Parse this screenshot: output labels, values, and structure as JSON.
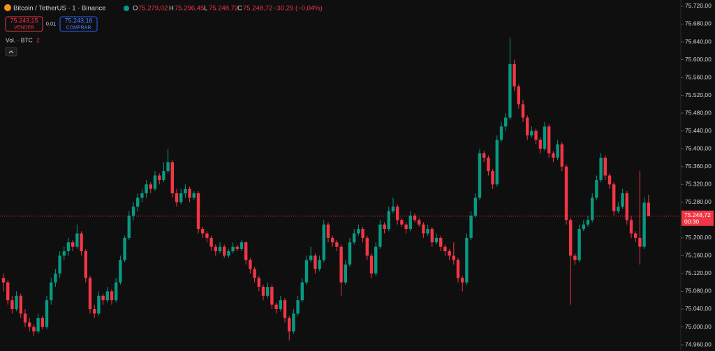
{
  "chart_data": {
    "type": "candlestick",
    "header": {
      "symbol": "Bitcoin / TetherUS · 1 · Binance",
      "o_label": "O",
      "open": "75.279,02",
      "h_label": "H",
      "high": "75.296,45",
      "l_label": "L",
      "low": "75.248,72",
      "c_label": "C",
      "close": "75.248,72",
      "change": "−30,29 (−0,04%)",
      "sell_price": "75.243,15",
      "sell_label": "VENDER",
      "spread": "0,01",
      "buy_price": "75.243,16",
      "buy_label": "COMPRAR",
      "volume_label": "Vol. · BTC",
      "volume_count": "2"
    },
    "last_price": 75248.72,
    "last_price_label": "75.248,72",
    "countdown": "00:30",
    "up_color": "#089981",
    "down_color": "#f23645",
    "ylim": [
      74946,
      75734
    ],
    "yticks": [
      {
        "value": 74960,
        "label": "74.960,00"
      },
      {
        "value": 75000,
        "label": "75.000,00"
      },
      {
        "value": 75040,
        "label": "75.040,00"
      },
      {
        "value": 75080,
        "label": "75.080,00"
      },
      {
        "value": 75120,
        "label": "75.120,00"
      },
      {
        "value": 75160,
        "label": "75.160,00"
      },
      {
        "value": 75200,
        "label": "75.200,00"
      },
      {
        "value": 75240,
        "label": "75.240,00"
      },
      {
        "value": 75280,
        "label": "75.280,00"
      },
      {
        "value": 75320,
        "label": "75.320,00"
      },
      {
        "value": 75360,
        "label": "75.360,00"
      },
      {
        "value": 75400,
        "label": "75.400,00"
      },
      {
        "value": 75440,
        "label": "75.440,00"
      },
      {
        "value": 75480,
        "label": "75.480,00"
      },
      {
        "value": 75520,
        "label": "75.520,00"
      },
      {
        "value": 75560,
        "label": "75.560,00"
      },
      {
        "value": 75600,
        "label": "75.600,00"
      },
      {
        "value": 75640,
        "label": "75.640,00"
      },
      {
        "value": 75680,
        "label": "75.680,00"
      },
      {
        "value": 75720,
        "label": "75.720,00"
      }
    ],
    "ohlc": [
      [
        75110,
        75120,
        75080,
        75100
      ],
      [
        75100,
        75105,
        75050,
        75060
      ],
      [
        75060,
        75070,
        75030,
        75040
      ],
      [
        75040,
        75080,
        75035,
        75070
      ],
      [
        75070,
        75075,
        75020,
        75030
      ],
      [
        75030,
        75040,
        75000,
        75010
      ],
      [
        75010,
        75020,
        74990,
        75000
      ],
      [
        75000,
        75005,
        74980,
        74990
      ],
      [
        74990,
        75030,
        74985,
        75020
      ],
      [
        75020,
        75025,
        74995,
        75000
      ],
      [
        75000,
        75070,
        74995,
        75060
      ],
      [
        75060,
        75110,
        75050,
        75100
      ],
      [
        75100,
        75130,
        75090,
        75120
      ],
      [
        75120,
        75170,
        75110,
        75160
      ],
      [
        75160,
        75180,
        75150,
        75170
      ],
      [
        75170,
        75200,
        75160,
        75190
      ],
      [
        75190,
        75195,
        75170,
        75180
      ],
      [
        75180,
        75230,
        75175,
        75210
      ],
      [
        75210,
        75215,
        75160,
        75170
      ],
      [
        75170,
        75175,
        75100,
        75110
      ],
      [
        75110,
        75115,
        75030,
        75040
      ],
      [
        75040,
        75050,
        75020,
        75030
      ],
      [
        75030,
        75080,
        75025,
        75070
      ],
      [
        75070,
        75075,
        75050,
        75060
      ],
      [
        75060,
        75090,
        75055,
        75080
      ],
      [
        75080,
        75085,
        75050,
        75060
      ],
      [
        75060,
        75110,
        75055,
        75100
      ],
      [
        75100,
        75160,
        75095,
        75150
      ],
      [
        75150,
        75205,
        75145,
        75200
      ],
      [
        75200,
        75260,
        75195,
        75250
      ],
      [
        75250,
        75280,
        75240,
        75270
      ],
      [
        75270,
        75300,
        75260,
        75290
      ],
      [
        75290,
        75310,
        75280,
        75300
      ],
      [
        75300,
        75330,
        75290,
        75320
      ],
      [
        75320,
        75325,
        75300,
        75310
      ],
      [
        75310,
        75350,
        75305,
        75340
      ],
      [
        75340,
        75345,
        75320,
        75330
      ],
      [
        75330,
        75370,
        75325,
        75350
      ],
      [
        75350,
        75400,
        75345,
        75370
      ],
      [
        75370,
        75375,
        75290,
        75300
      ],
      [
        75300,
        75310,
        75270,
        75280
      ],
      [
        75280,
        75310,
        75275,
        75300
      ],
      [
        75300,
        75320,
        75290,
        75310
      ],
      [
        75310,
        75315,
        75280,
        75290
      ],
      [
        75290,
        75305,
        75285,
        75300
      ],
      [
        75300,
        75305,
        75210,
        75220
      ],
      [
        75220,
        75225,
        75200,
        75210
      ],
      [
        75210,
        75215,
        75190,
        75200
      ],
      [
        75200,
        75205,
        75170,
        75180
      ],
      [
        75180,
        75185,
        75160,
        75170
      ],
      [
        75170,
        75190,
        75165,
        75180
      ],
      [
        75180,
        75185,
        75155,
        75160
      ],
      [
        75160,
        75175,
        75155,
        75170
      ],
      [
        75170,
        75190,
        75165,
        75180
      ],
      [
        75180,
        75185,
        75170,
        75175
      ],
      [
        75175,
        75195,
        75170,
        75190
      ],
      [
        75190,
        75192,
        75140,
        75150
      ],
      [
        75150,
        75155,
        75120,
        75130
      ],
      [
        75130,
        75135,
        75100,
        75110
      ],
      [
        75110,
        75115,
        75080,
        75090
      ],
      [
        75090,
        75095,
        75060,
        75070
      ],
      [
        75070,
        75100,
        75065,
        75090
      ],
      [
        75090,
        75095,
        75040,
        75050
      ],
      [
        75050,
        75055,
        75030,
        75040
      ],
      [
        75040,
        75070,
        75035,
        75060
      ],
      [
        75060,
        75065,
        75010,
        75020
      ],
      [
        75020,
        75025,
        74970,
        74990
      ],
      [
        74990,
        75040,
        74985,
        75030
      ],
      [
        75030,
        75070,
        75025,
        75060
      ],
      [
        75060,
        75110,
        75055,
        75100
      ],
      [
        75100,
        75160,
        75095,
        75150
      ],
      [
        75150,
        75180,
        75145,
        75160
      ],
      [
        75160,
        75165,
        75120,
        75130
      ],
      [
        75130,
        75160,
        75125,
        75150
      ],
      [
        75150,
        75240,
        75145,
        75230
      ],
      [
        75230,
        75235,
        75190,
        75200
      ],
      [
        75200,
        75205,
        75180,
        75190
      ],
      [
        75190,
        75195,
        75170,
        75180
      ],
      [
        75180,
        75185,
        75070,
        75100
      ],
      [
        75100,
        75150,
        75095,
        75140
      ],
      [
        75140,
        75200,
        75135,
        75190
      ],
      [
        75190,
        75220,
        75185,
        75210
      ],
      [
        75210,
        75230,
        75205,
        75220
      ],
      [
        75220,
        75225,
        75190,
        75200
      ],
      [
        75200,
        75205,
        75150,
        75160
      ],
      [
        75160,
        75165,
        75110,
        75120
      ],
      [
        75120,
        75190,
        75115,
        75180
      ],
      [
        75180,
        75240,
        75175,
        75230
      ],
      [
        75230,
        75235,
        75210,
        75220
      ],
      [
        75220,
        75270,
        75215,
        75260
      ],
      [
        75260,
        75290,
        75255,
        75270
      ],
      [
        75270,
        75275,
        75230,
        75240
      ],
      [
        75240,
        75245,
        75225,
        75230
      ],
      [
        75230,
        75235,
        75210,
        75220
      ],
      [
        75220,
        75260,
        75215,
        75250
      ],
      [
        75250,
        75255,
        75235,
        75240
      ],
      [
        75240,
        75245,
        75225,
        75230
      ],
      [
        75230,
        75235,
        75200,
        75210
      ],
      [
        75210,
        75230,
        75205,
        75220
      ],
      [
        75220,
        75225,
        75180,
        75190
      ],
      [
        75190,
        75210,
        75185,
        75200
      ],
      [
        75200,
        75205,
        75170,
        75180
      ],
      [
        75180,
        75185,
        75160,
        75170
      ],
      [
        75170,
        75175,
        75150,
        75160
      ],
      [
        75160,
        75190,
        75140,
        75150
      ],
      [
        75150,
        75155,
        75100,
        75110
      ],
      [
        75110,
        75115,
        75080,
        75100
      ],
      [
        75100,
        75210,
        75095,
        75200
      ],
      [
        75200,
        75260,
        75195,
        75250
      ],
      [
        75250,
        75300,
        75245,
        75290
      ],
      [
        75290,
        75400,
        75285,
        75390
      ],
      [
        75390,
        75395,
        75370,
        75380
      ],
      [
        75380,
        75385,
        75340,
        75350
      ],
      [
        75350,
        75355,
        75310,
        75320
      ],
      [
        75320,
        75430,
        75315,
        75420
      ],
      [
        75420,
        75460,
        75415,
        75450
      ],
      [
        75450,
        75480,
        75440,
        75470
      ],
      [
        75470,
        75650,
        75465,
        75590
      ],
      [
        75590,
        75600,
        75530,
        75540
      ],
      [
        75540,
        75545,
        75490,
        75500
      ],
      [
        75500,
        75510,
        75460,
        75470
      ],
      [
        75470,
        75475,
        75420,
        75430
      ],
      [
        75430,
        75450,
        75425,
        75440
      ],
      [
        75440,
        75445,
        75410,
        75420
      ],
      [
        75420,
        75425,
        75390,
        75400
      ],
      [
        75400,
        75460,
        75395,
        75450
      ],
      [
        75450,
        75455,
        75380,
        75390
      ],
      [
        75390,
        75395,
        75370,
        75380
      ],
      [
        75380,
        75420,
        75375,
        75410
      ],
      [
        75410,
        75415,
        75350,
        75360
      ],
      [
        75360,
        75365,
        75230,
        75240
      ],
      [
        75240,
        75245,
        75050,
        75160
      ],
      [
        75160,
        75165,
        75140,
        75150
      ],
      [
        75150,
        75230,
        75145,
        75220
      ],
      [
        75220,
        75240,
        75215,
        75230
      ],
      [
        75230,
        75250,
        75225,
        75240
      ],
      [
        75240,
        75300,
        75235,
        75290
      ],
      [
        75290,
        75340,
        75285,
        75330
      ],
      [
        75330,
        75390,
        75325,
        75380
      ],
      [
        75380,
        75385,
        75330,
        75340
      ],
      [
        75340,
        75345,
        75310,
        75320
      ],
      [
        75320,
        75325,
        75250,
        75260
      ],
      [
        75260,
        75280,
        75255,
        75270
      ],
      [
        75270,
        75310,
        75265,
        75300
      ],
      [
        75300,
        75305,
        75230,
        75240
      ],
      [
        75240,
        75250,
        75200,
        75210
      ],
      [
        75210,
        75215,
        75190,
        75200
      ],
      [
        75200,
        75350,
        75140,
        75180
      ],
      [
        75180,
        75290,
        75175,
        75279.02
      ],
      [
        75279.02,
        75296.45,
        75248.72,
        75248.72
      ]
    ]
  }
}
